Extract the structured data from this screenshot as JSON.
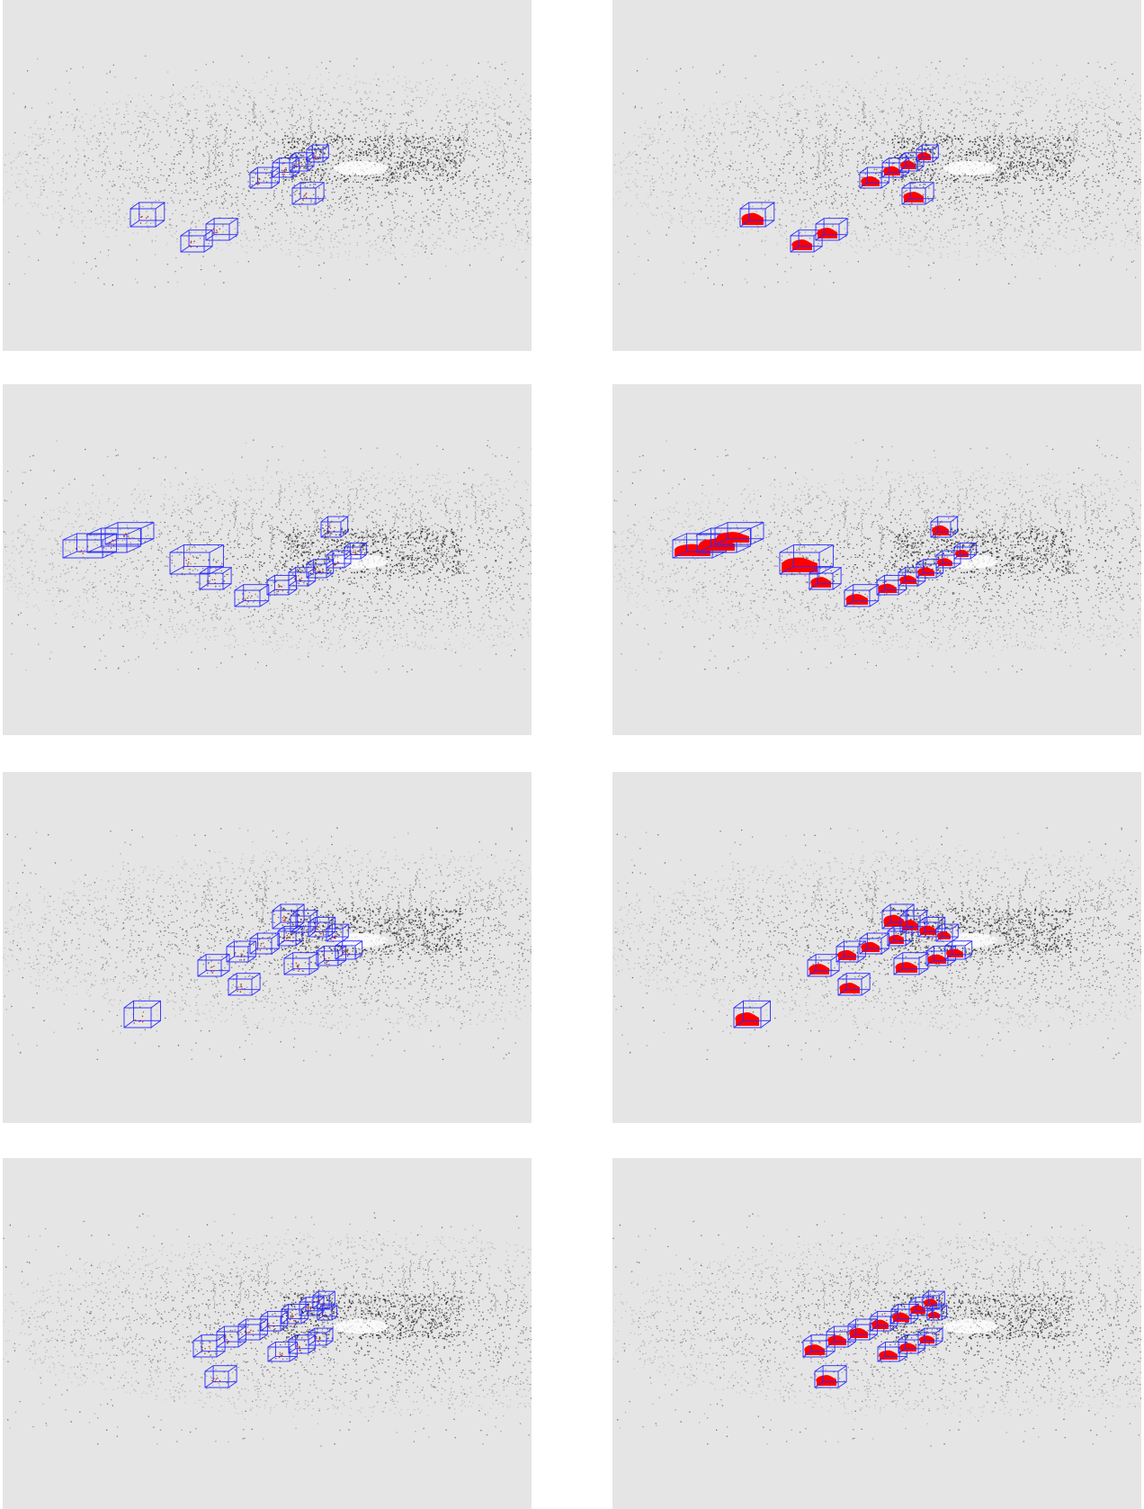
{
  "figure": {
    "background_color": "#e5e5e5",
    "point_color": "#333333",
    "box_color": "#2a2aff",
    "object_fill_color": "#ff0000",
    "rows": [
      {
        "id": "row1",
        "left_panel": "point-cloud-boxes",
        "right_panel": "point-cloud-reconstructed-cars",
        "object_count": 8
      },
      {
        "id": "row2",
        "left_panel": "point-cloud-boxes",
        "right_panel": "point-cloud-reconstructed-cars",
        "object_count": 12
      },
      {
        "id": "row3",
        "left_panel": "point-cloud-boxes",
        "right_panel": "point-cloud-reconstructed-cars",
        "object_count": 13
      },
      {
        "id": "row4",
        "left_panel": "point-cloud-boxes",
        "right_panel": "point-cloud-reconstructed-cars",
        "object_count": 12
      }
    ]
  }
}
